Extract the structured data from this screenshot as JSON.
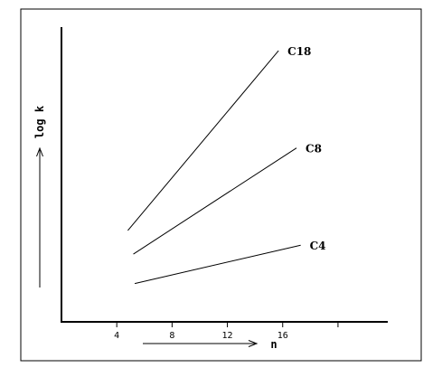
{
  "chart_data": {
    "type": "line",
    "xlabel": "n",
    "ylabel": "log k",
    "x_ticks": [
      4,
      8,
      12,
      16,
      20
    ],
    "x_tick_labels": [
      "4",
      "8",
      "12",
      "16",
      ""
    ],
    "xlim": [
      0,
      23.6
    ],
    "ylim": [
      0,
      100
    ],
    "y_ticks_shown": false,
    "grid": false,
    "legend": "none",
    "series": [
      {
        "name": "C18",
        "x": [
          4.8,
          15.7
        ],
        "y": [
          31,
          92
        ]
      },
      {
        "name": "C8",
        "x": [
          5.2,
          17.0
        ],
        "y": [
          23,
          59
        ]
      },
      {
        "name": "C4",
        "x": [
          5.3,
          17.3
        ],
        "y": [
          13,
          26
        ]
      }
    ]
  }
}
